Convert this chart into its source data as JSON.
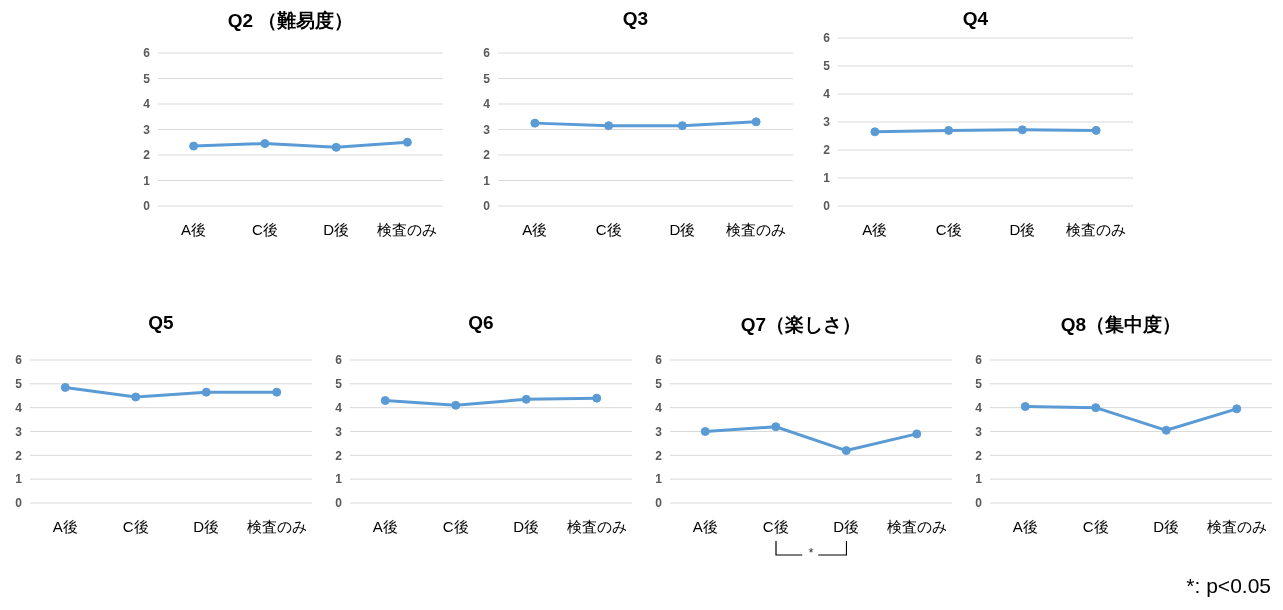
{
  "chart_data": [
    {
      "type": "line",
      "title": "Q2 （難易度）",
      "categories": [
        "A後",
        "C後",
        "D後",
        "検査のみ"
      ],
      "values": [
        2.35,
        2.45,
        2.3,
        2.5
      ],
      "color": "#5b9bd5",
      "ylim": [
        0,
        6
      ],
      "yticks": [
        0,
        1,
        2,
        3,
        4,
        5,
        6
      ],
      "grid": "y",
      "marker": "circle"
    },
    {
      "type": "line",
      "title": "Q3",
      "categories": [
        "A後",
        "C後",
        "D後",
        "検査のみ"
      ],
      "values": [
        3.25,
        3.15,
        3.15,
        3.3
      ],
      "color": "#5b9bd5",
      "ylim": [
        0,
        6
      ],
      "yticks": [
        0,
        1,
        2,
        3,
        4,
        5,
        6
      ],
      "grid": "y",
      "marker": "circle"
    },
    {
      "type": "line",
      "title": "Q4",
      "categories": [
        "A後",
        "C後",
        "D後",
        "検査のみ"
      ],
      "values": [
        2.65,
        2.7,
        2.72,
        2.7
      ],
      "color": "#5b9bd5",
      "ylim": [
        0,
        6
      ],
      "yticks": [
        0,
        1,
        2,
        3,
        4,
        5,
        6
      ],
      "grid": "y",
      "marker": "circle"
    },
    {
      "type": "line",
      "title": "Q5",
      "categories": [
        "A後",
        "C後",
        "D後",
        "検査のみ"
      ],
      "values": [
        4.85,
        4.45,
        4.65,
        4.65
      ],
      "color": "#5b9bd5",
      "ylim": [
        0,
        6
      ],
      "yticks": [
        0,
        1,
        2,
        3,
        4,
        5,
        6
      ],
      "grid": "y",
      "marker": "circle"
    },
    {
      "type": "line",
      "title": "Q6",
      "categories": [
        "A後",
        "C後",
        "D後",
        "検査のみ"
      ],
      "values": [
        4.3,
        4.1,
        4.35,
        4.4
      ],
      "color": "#5b9bd5",
      "ylim": [
        0,
        6
      ],
      "yticks": [
        0,
        1,
        2,
        3,
        4,
        5,
        6
      ],
      "grid": "y",
      "marker": "circle"
    },
    {
      "type": "line",
      "title": "Q7（楽しさ）",
      "categories": [
        "A後",
        "C後",
        "D後",
        "検査のみ"
      ],
      "values": [
        3.0,
        3.2,
        2.2,
        2.9
      ],
      "color": "#5b9bd5",
      "ylim": [
        0,
        6
      ],
      "yticks": [
        0,
        1,
        2,
        3,
        4,
        5,
        6
      ],
      "grid": "y",
      "marker": "circle",
      "annotations": [
        "*"
      ]
    },
    {
      "type": "line",
      "title": "Q8（集中度）",
      "categories": [
        "A後",
        "C後",
        "D後",
        "検査のみ"
      ],
      "values": [
        4.05,
        4.0,
        3.05,
        3.95
      ],
      "color": "#5b9bd5",
      "ylim": [
        0,
        6
      ],
      "yticks": [
        0,
        1,
        2,
        3,
        4,
        5,
        6
      ],
      "grid": "y",
      "marker": "circle",
      "annotations": [
        "*: p<0.05"
      ]
    }
  ]
}
